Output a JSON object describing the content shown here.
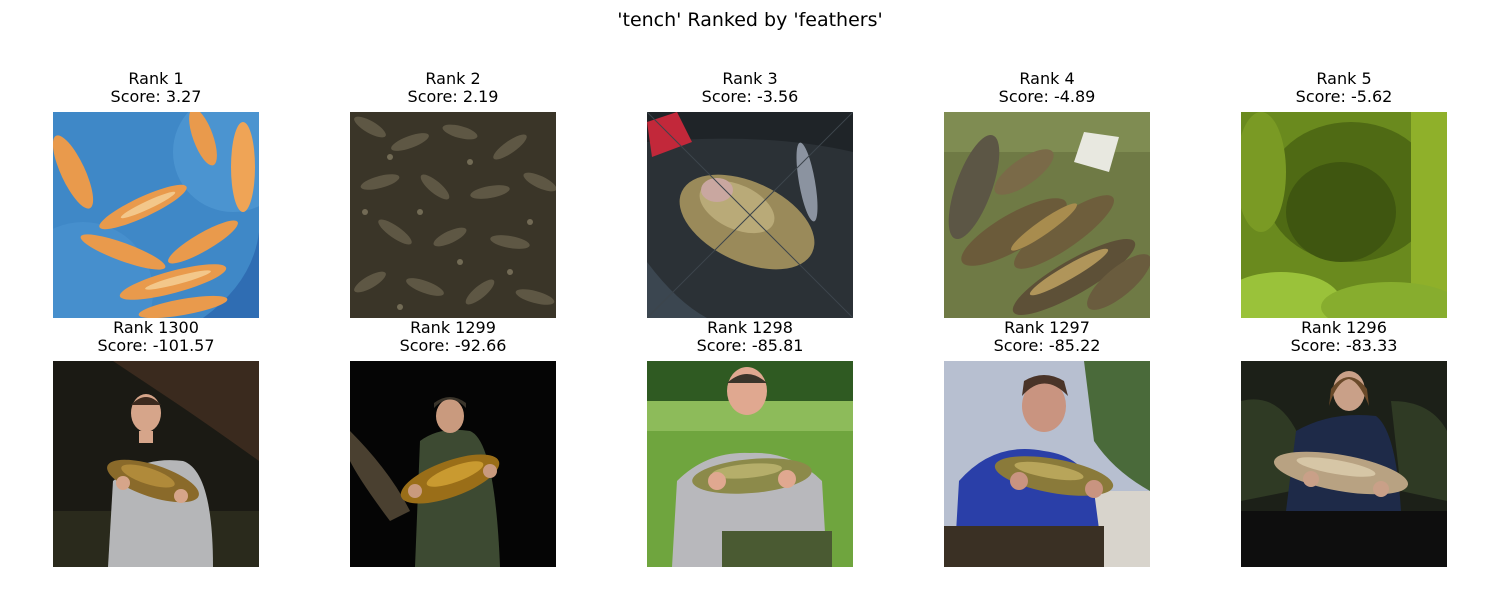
{
  "figure": {
    "title": "'tench' Ranked by 'feathers'"
  },
  "panels": [
    {
      "rank": "Rank 1",
      "score": "Score: 3.27",
      "image": "orange-koi-in-blue-tank"
    },
    {
      "rank": "Rank 2",
      "score": "Score: 2.19",
      "image": "crowded-dark-fish"
    },
    {
      "rank": "Rank 3",
      "score": "Score: -3.56",
      "image": "tench-in-landing-net"
    },
    {
      "rank": "Rank 4",
      "score": "Score: -4.89",
      "image": "tench-on-grass"
    },
    {
      "rank": "Rank 5",
      "score": "Score: -5.62",
      "image": "green-blurry-weeds"
    },
    {
      "rank": "Rank 1300",
      "score": "Score: -101.57",
      "image": "man-holding-tench-night"
    },
    {
      "rank": "Rank 1299",
      "score": "Score: -92.66",
      "image": "angler-holding-tench-dark"
    },
    {
      "rank": "Rank 1298",
      "score": "Score: -85.81",
      "image": "man-holding-tench-meadow"
    },
    {
      "rank": "Rank 1297",
      "score": "Score: -85.22",
      "image": "man-blue-jacket-holding-tench"
    },
    {
      "rank": "Rank 1296",
      "score": "Score: -83.33",
      "image": "man-holding-carp-night"
    }
  ]
}
